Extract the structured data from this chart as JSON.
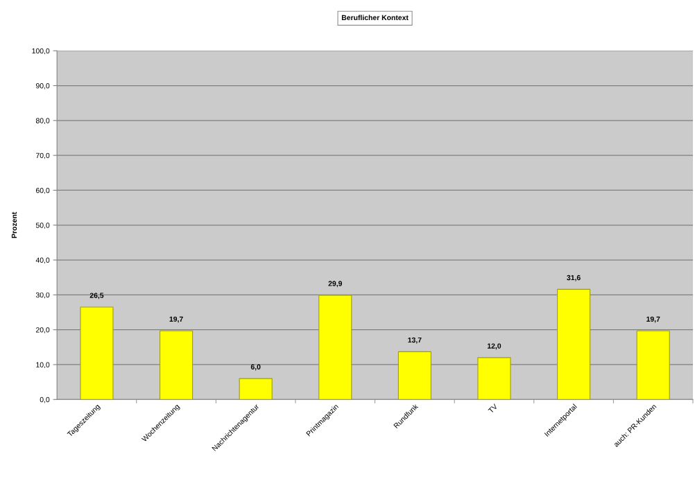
{
  "chart_data": {
    "type": "bar",
    "title": "Beruflicher Kontext",
    "ylabel": "Prozent",
    "categories": [
      "Tageszeitung",
      "Wochenzeitung",
      "Nachrichtenagentur",
      "Printmagazin",
      "Rundfunk",
      "TV",
      "Internetportal",
      "auch: PR-Kunden"
    ],
    "values": [
      26.5,
      19.7,
      6.0,
      29.9,
      13.7,
      12.0,
      31.6,
      19.7
    ],
    "color": "#ffff00",
    "value_labels": [
      "26,5",
      "19,7",
      "6,0",
      "29,9",
      "13,7",
      "12,0",
      "31,6",
      "19,7"
    ],
    "ylim": [
      0,
      100
    ],
    "yticks": [
      {
        "value": 0,
        "label": "0,0"
      },
      {
        "value": 10,
        "label": "10,0"
      },
      {
        "value": 20,
        "label": "20,0"
      },
      {
        "value": 30,
        "label": "30,0"
      },
      {
        "value": 40,
        "label": "40,0"
      },
      {
        "value": 50,
        "label": "50,0"
      },
      {
        "value": 60,
        "label": "60,0"
      },
      {
        "value": 70,
        "label": "70,0"
      },
      {
        "value": 80,
        "label": "80,0"
      },
      {
        "value": 90,
        "label": "90,0"
      },
      {
        "value": 100,
        "label": "100,0"
      }
    ],
    "grid": "y"
  }
}
